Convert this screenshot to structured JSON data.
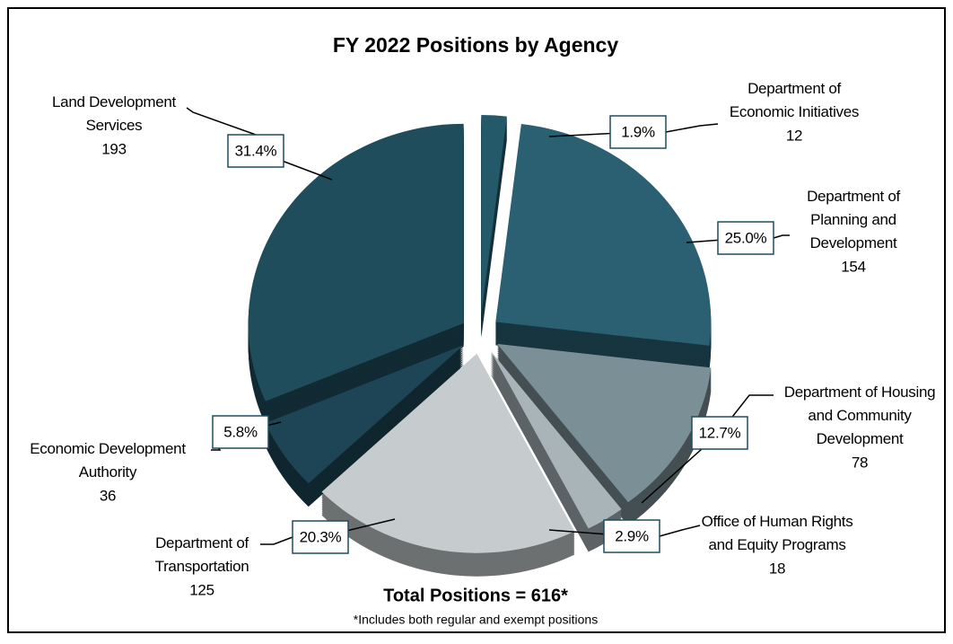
{
  "chart_data": {
    "type": "pie",
    "title": "FY 2022 Positions by Agency",
    "categories": [
      "Department of\nEconomic Initiatives",
      "Department of\nPlanning and\nDevelopment",
      "Department of Housing\nand Community\nDevelopment",
      "Office of Human Rights\nand Equity Programs",
      "Department of\nTransportation",
      "Economic Development\nAuthority",
      "Land Development\nServices"
    ],
    "values": [
      1.9,
      25.0,
      12.7,
      2.9,
      20.3,
      5.8,
      31.4
    ],
    "value_labels": [
      "1.9%",
      "25.0%",
      "12.7%",
      "2.9%",
      "20.3%",
      "5.8%",
      "31.4%"
    ],
    "positions": [
      12,
      154,
      78,
      18,
      125,
      36,
      193
    ],
    "colors": [
      "#24596a",
      "#2a6072",
      "#7b8f97",
      "#a9b4b9",
      "#c6cbce",
      "#1d4555",
      "#1f4d5c"
    ],
    "total_label": "Total Positions = 616*",
    "footnote": "*Includes both regular and exempt positions"
  }
}
